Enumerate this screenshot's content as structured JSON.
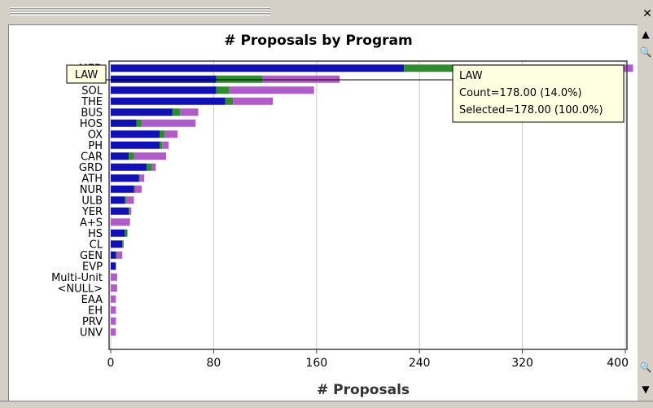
{
  "window": {
    "close_glyph": "✕"
  },
  "scrollbar": {
    "up": "▲",
    "down": "▼",
    "zoom": "🔍"
  },
  "colors": {
    "background": "#ffffff",
    "selected": "#1010b4",
    "secondary": "#2e8b2e",
    "remainder": "#b05cc8",
    "grid": "#c8c8c8",
    "tooltip_bg": "#ffffe1"
  },
  "tooltip": {
    "title": "LAW",
    "line1": "Count=178.00 (14.0%)",
    "line2": "Selected=178.00 (100.0%)"
  },
  "highlight_label": "LAW",
  "chart_data": {
    "type": "bar",
    "orientation": "horizontal",
    "stacked": true,
    "title": "# Proposals by Program",
    "xlabel": "# Proposals",
    "ylabel": "",
    "xlim": [
      0,
      400
    ],
    "xticks": [
      0,
      80,
      160,
      240,
      320,
      400
    ],
    "grid": true,
    "categories": [
      "MED",
      "LAW",
      "SOL",
      "THE",
      "BUS",
      "HOS",
      "OX",
      "PH",
      "CAR",
      "GRD",
      "ATH",
      "NUR",
      "ULB",
      "YER",
      "A+S",
      "HS",
      "CL",
      "GEN",
      "EVP",
      "Multi-Unit",
      "<NULL>",
      "EAA",
      "EH",
      "PRV",
      "UNV"
    ],
    "series": [
      {
        "values": [
          228,
          82,
          82,
          89,
          48,
          20,
          38,
          38,
          14,
          28,
          22,
          18,
          11,
          14,
          0,
          11,
          9,
          4,
          4,
          0,
          0,
          0,
          0,
          0,
          0
        ]
      },
      {
        "values": [
          40,
          36,
          10,
          6,
          6,
          4,
          4,
          2,
          4,
          4,
          1,
          1,
          1,
          1,
          0,
          2,
          1,
          1,
          0,
          0,
          0,
          0,
          0,
          0,
          0
        ]
      },
      {
        "values": [
          138,
          60,
          66,
          31,
          14,
          42,
          10,
          5,
          25,
          3,
          3,
          5,
          6,
          1,
          15,
          0,
          0,
          4,
          0,
          5,
          5,
          4,
          4,
          4,
          4
        ]
      }
    ]
  }
}
